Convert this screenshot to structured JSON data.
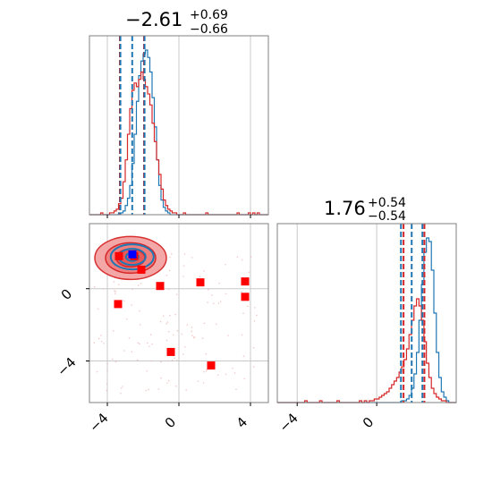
{
  "chart_data": {
    "type": "corner",
    "panels": [
      {
        "id": "hist-param-1",
        "type": "histogram",
        "title": {
          "median": "−2.61",
          "plus": "+0.69",
          "minus": "−0.66"
        },
        "xlim": [
          -5,
          5
        ],
        "grid": true,
        "x_ticks": [],
        "quantile_lines": {
          "blue": [
            -3.27,
            -2.61,
            -1.92
          ],
          "red": [
            -3.3,
            -1.95
          ]
        },
        "series": [
          {
            "name": "",
            "color": "#1f77b4",
            "bin_edges_start": -5,
            "bin_width": 0.125,
            "values": [
              0,
              0,
              0,
              0,
              0,
              0,
              0,
              0,
              0,
              0,
              0,
              0,
              0,
              1,
              1,
              2,
              5,
              9,
              16,
              28,
              44,
              62,
              76,
              84,
              88,
              90,
              86,
              78,
              64,
              48,
              30,
              16,
              8,
              4,
              2,
              1,
              0,
              0,
              0,
              0,
              0,
              0,
              0,
              0,
              0,
              0,
              0,
              0,
              0,
              0,
              0,
              0,
              0,
              0,
              0,
              0,
              0,
              0,
              0,
              0,
              0,
              0,
              0,
              0,
              0,
              0,
              0,
              0,
              0,
              0,
              0,
              0,
              0,
              0,
              0,
              0,
              0,
              0,
              0,
              0
            ]
          },
          {
            "name": "",
            "color": "#d62728",
            "bin_edges_start": -5,
            "bin_width": 0.125,
            "values": [
              0,
              0,
              0,
              0,
              0,
              1,
              0,
              0,
              0,
              1,
              1,
              2,
              3,
              6,
              9,
              18,
              30,
              44,
              58,
              68,
              72,
              70,
              74,
              78,
              74,
              70,
              66,
              60,
              50,
              40,
              30,
              22,
              14,
              8,
              5,
              3,
              2,
              1,
              1,
              0,
              0,
              0,
              1,
              0,
              0,
              0,
              0,
              0,
              0,
              0,
              0,
              0,
              1,
              0,
              0,
              0,
              0,
              0,
              0,
              0,
              0,
              0,
              0,
              0,
              0,
              0,
              1,
              0,
              0,
              0,
              0,
              1,
              0,
              1,
              0,
              1,
              0,
              0,
              0,
              0
            ]
          }
        ]
      },
      {
        "id": "hist-param-2",
        "type": "histogram",
        "title": {
          "median": "1.76",
          "plus": "+0.54",
          "minus": "−0.54"
        },
        "xlim": [
          -5,
          4
        ],
        "grid": true,
        "x_ticks": [
          "−4",
          "0"
        ],
        "quantile_lines": {
          "blue": [
            1.22,
            1.76,
            2.3
          ],
          "red": [
            1.35,
            2.4
          ]
        },
        "series": [
          {
            "name": "",
            "color": "#1f77b4",
            "bin_edges_start": -5,
            "bin_width": 0.125,
            "values": [
              0,
              0,
              0,
              0,
              0,
              0,
              0,
              0,
              0,
              0,
              0,
              0,
              0,
              0,
              0,
              0,
              0,
              0,
              0,
              0,
              0,
              0,
              0,
              0,
              0,
              0,
              0,
              0,
              0,
              0,
              0,
              0,
              0,
              0,
              0,
              0,
              0,
              0,
              0,
              0,
              0,
              0,
              0,
              0,
              0,
              0,
              0,
              0,
              0,
              0,
              1,
              1,
              2,
              4,
              8,
              16,
              28,
              46,
              66,
              84,
              92,
              90,
              74,
              50,
              28,
              14,
              6,
              3,
              1,
              0,
              0,
              0
            ]
          },
          {
            "name": "",
            "color": "#d62728",
            "bin_edges_start": -5,
            "bin_width": 0.125,
            "values": [
              0,
              0,
              0,
              0,
              0,
              0,
              0,
              0,
              0,
              0,
              0,
              1,
              0,
              0,
              0,
              0,
              0,
              1,
              0,
              0,
              0,
              0,
              0,
              0,
              1,
              0,
              0,
              0,
              0,
              0,
              0,
              0,
              0,
              1,
              0,
              1,
              0,
              1,
              1,
              2,
              2,
              3,
              4,
              5,
              6,
              8,
              10,
              12,
              14,
              17,
              20,
              24,
              30,
              38,
              46,
              54,
              58,
              54,
              46,
              34,
              22,
              14,
              8,
              5,
              3,
              2,
              1,
              1,
              0,
              0,
              0,
              0
            ]
          }
        ]
      },
      {
        "id": "scatter-2d",
        "type": "scatter",
        "xlim": [
          -5,
          5
        ],
        "ylim": [
          -6.3,
          3.6
        ],
        "grid": true,
        "x_ticks": [
          "−4",
          "0",
          "4"
        ],
        "y_ticks": [
          "0",
          "−4"
        ],
        "contour_centers": {
          "blue": [
            -2.61,
            1.76
          ],
          "red": [
            -2.7,
            1.7
          ]
        },
        "red_squares": [
          {
            "x": -3.35,
            "y": 1.8
          },
          {
            "x": -2.5,
            "y": 1.8
          },
          {
            "x": -2.1,
            "y": 1.05
          },
          {
            "x": -3.4,
            "y": -0.85
          },
          {
            "x": -1.05,
            "y": 0.15
          },
          {
            "x": 1.2,
            "y": 0.35
          },
          {
            "x": 3.7,
            "y": 0.4
          },
          {
            "x": 3.7,
            "y": -0.45
          },
          {
            "x": -0.45,
            "y": -3.5
          },
          {
            "x": 1.8,
            "y": -4.25
          }
        ],
        "blue_square": {
          "x": -2.6,
          "y": 1.9
        }
      }
    ]
  }
}
